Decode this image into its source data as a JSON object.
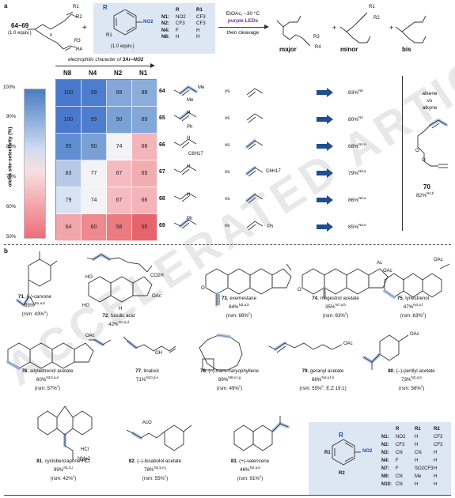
{
  "panel_a": {
    "label": "a",
    "substrate_ids": "64–69",
    "substrate_equiv": "(1.0 equiv.)",
    "reagent_equiv": "(1.0 equiv.)",
    "reagent_group": "NO2",
    "reagent_label_R": "R",
    "reagent_label_R1": "R1",
    "table_headers": [
      "R",
      "R1"
    ],
    "table_rows": [
      [
        "N1:",
        "NO2",
        "CF3"
      ],
      [
        "N2:",
        "CF3",
        "CF3"
      ],
      [
        "N4:",
        "F",
        "H"
      ],
      [
        "N8:",
        "H",
        "H"
      ]
    ],
    "conditions_line1": "EtOAc, –30 °C",
    "conditions_line2": "purple LEDs",
    "conditions_line3": "then cleavage",
    "product_labels": [
      "major",
      "minor",
      "bis"
    ],
    "struct_labels": [
      "R1",
      "R2",
      "R3",
      "R4",
      "n",
      "n",
      "n",
      "n",
      "n"
    ],
    "elec_label": "electrophilic character of",
    "elec_label_sub": "3Ar–NO2",
    "col_headers": [
      "N8",
      "N4",
      "N2",
      "N1"
    ],
    "ylabel": "olefin site-selectivity (%)",
    "yticks": [
      "100%",
      "90%",
      "80%",
      "70%",
      "60%",
      "50%"
    ],
    "heatmap": {
      "rows": [
        {
          "id": "64",
          "values": [
            100,
            99,
            89,
            88
          ],
          "result": "83%",
          "sup": "N8"
        },
        {
          "id": "65",
          "values": [
            100,
            99,
            90,
            89
          ],
          "result": "80%",
          "sup": "N4"
        },
        {
          "id": "66",
          "values": [
            95,
            90,
            74,
            66
          ],
          "result": "68%",
          "sup": "N4,a"
        },
        {
          "id": "67",
          "values": [
            83,
            77,
            67,
            65
          ],
          "result": "79%",
          "sup": "N8,a"
        },
        {
          "id": "68",
          "values": [
            79,
            74,
            67,
            66
          ],
          "result": "86%",
          "sup": "N8,a"
        },
        {
          "id": "69",
          "values": [
            64,
            60,
            58,
            55
          ],
          "result": "85%",
          "sup": "N8,a"
        }
      ]
    },
    "row_sub_labels": [
      "Me",
      "Me",
      "H",
      "Ph",
      "H",
      "C6H17",
      "H",
      "C6H17",
      "H",
      "Ph",
      "Ph"
    ],
    "vs_label": "vs",
    "side": {
      "title1": "alkene",
      "title2": "vs",
      "title3": "alkyne",
      "compound": "70",
      "result": "82%",
      "sup": "N2,b",
      "atoms": [
        "O",
        "O"
      ]
    }
  },
  "panel_b": {
    "label": "b",
    "compounds": [
      {
        "num": "71",
        "name": "(–)-carvone",
        "yield": "95%",
        "sup": "N1,a,b",
        "rsm": "(rsm: 43%",
        "rsm_sup": "c",
        "extra": []
      },
      {
        "num": "72",
        "name": "fusidic acid",
        "yield": "42%",
        "sup": "N1,a,d",
        "rsm": "",
        "rsm_sup": "",
        "extra": [
          "CO2H",
          "HO",
          "OAc",
          "HO",
          "H"
        ]
      },
      {
        "num": "73",
        "name": "exemestane",
        "yield": "64%",
        "sup": "N3,a,b",
        "rsm": "(rsm: 68%",
        "rsm_sup": "c",
        "extra": [
          "O"
        ]
      },
      {
        "num": "74",
        "name": "megestrol acetate",
        "yield": "35%",
        "sup": "N7,a,b",
        "rsm": "(rsm: 63%",
        "rsm_sup": "c",
        "extra": [
          "Ac",
          "OAc",
          "O"
        ]
      },
      {
        "num": "75",
        "name": "lynestrenol",
        "yield": "47%",
        "sup": "N4,a,f",
        "rsm": "(rsm: 63%",
        "rsm_sup": "c",
        "extra": [
          "OAc"
        ]
      },
      {
        "num": "76",
        "name": "allylestrenol acetate",
        "yield": "60%",
        "sup": "N10,a,e",
        "rsm": "(rsm: 57%",
        "rsm_sup": "c",
        "extra": [
          "OAc"
        ]
      },
      {
        "num": "77",
        "name": "linalool",
        "yield": "71%",
        "sup": "N10,d,e",
        "rsm": "",
        "rsm_sup": "",
        "extra": [
          "OH"
        ]
      },
      {
        "num": "78",
        "name": "(–)-trans-caryophyllene",
        "yield": "89%",
        "sup": "N8,e,f,g",
        "rsm": "(rsm: 49%",
        "rsm_sup": "c",
        "extra": []
      },
      {
        "num": "79",
        "name": "geranyl acetate",
        "yield": "66%",
        "sup": "N4,a,f,h",
        "rsm": "(rsm: 55%",
        "rsm_sup": "c",
        "ratio": "; E:Z 19:1)",
        "extra": [
          "OAc"
        ]
      },
      {
        "num": "80",
        "name": "(–)-perillyl acetate",
        "yield": "73%",
        "sup": "N2,a,b",
        "rsm": "(rsm: 56%",
        "rsm_sup": "c",
        "extra": [
          "OAc"
        ]
      },
      {
        "num": "81",
        "name": "cyclobenzaprine•HCl",
        "yield": "99%",
        "sup": "N1,b,i",
        "rsm": "(rsm: 42%",
        "rsm_sup": "c",
        "extra": [
          "HCl",
          "NMe2"
        ]
      },
      {
        "num": "82",
        "name": "(–)-bisabolol acetate",
        "yield": "78%",
        "sup": "N2,b,e,j",
        "rsm": "(rsm: 55%",
        "rsm_sup": "c",
        "extra": [
          "AcO"
        ]
      },
      {
        "num": "83",
        "name": "(+)-valencene",
        "yield": "46%",
        "sup": "N2,a,b",
        "rsm": "(rsm: 91%",
        "rsm_sup": "c",
        "extra": []
      }
    ],
    "nitro_table": {
      "headers": [
        "R",
        "R1",
        "R2"
      ],
      "rows": [
        [
          "N1:",
          "NO2",
          "H",
          "CF3"
        ],
        [
          "N2:",
          "CF3",
          "H",
          "CF3"
        ],
        [
          "N3:",
          "CN",
          "CN",
          "H"
        ],
        [
          "N4:",
          "F",
          "H",
          "H"
        ],
        [
          "N7:",
          "F",
          "SO2CF3",
          "H"
        ],
        [
          "N9:",
          "CN",
          "Me",
          "H"
        ],
        [
          "N10:",
          "CN",
          "H",
          "H"
        ]
      ],
      "ring_labels": [
        "R",
        "R1",
        "R2",
        "NO2"
      ]
    }
  },
  "watermark": "ACCELERATED ARTICLE PREVIEW"
}
